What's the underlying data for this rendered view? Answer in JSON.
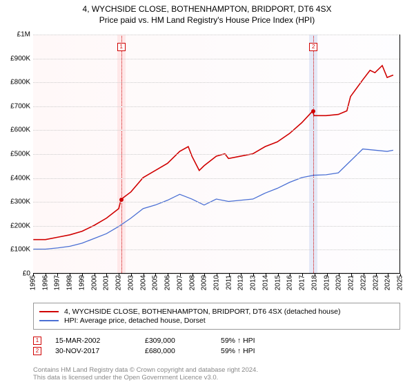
{
  "title": "4, WYCHSIDE CLOSE, BOTHENHAMPTON, BRIDPORT, DT6 4SX",
  "subtitle": "Price paid vs. HM Land Registry's House Price Index (HPI)",
  "chart": {
    "type": "line",
    "background_color": "#ffffff",
    "grid_color": "#cccccc",
    "axis_color": "#000000",
    "x": {
      "min": 1995,
      "max": 2025,
      "ticks": [
        1995,
        1996,
        1997,
        1998,
        1999,
        2000,
        2001,
        2002,
        2003,
        2004,
        2005,
        2006,
        2007,
        2008,
        2009,
        2010,
        2011,
        2012,
        2013,
        2014,
        2015,
        2016,
        2017,
        2018,
        2019,
        2020,
        2021,
        2022,
        2023,
        2024,
        2025
      ]
    },
    "y": {
      "min": 0,
      "max": 1000000,
      "ticks": [
        0,
        100000,
        200000,
        300000,
        400000,
        500000,
        600000,
        700000,
        800000,
        900000,
        1000000
      ],
      "tick_labels": [
        "£0",
        "£100K",
        "£200K",
        "£300K",
        "£400K",
        "£500K",
        "£600K",
        "£700K",
        "£800K",
        "£900K",
        "£1M"
      ]
    },
    "bands": [
      {
        "x": 2002.2,
        "color": "rgba(255,200,200,0.35)"
      },
      {
        "x": 2017.91,
        "color": "rgba(200,210,240,0.45)"
      }
    ],
    "series": [
      {
        "name": "4, WYCHSIDE CLOSE, BOTHENHAMPTON, BRIDPORT, DT6 4SX (detached house)",
        "color": "#d00000",
        "width": 1.6,
        "points": [
          [
            1995,
            140000
          ],
          [
            1996,
            140000
          ],
          [
            1997,
            150000
          ],
          [
            1998,
            160000
          ],
          [
            1999,
            175000
          ],
          [
            2000,
            200000
          ],
          [
            2001,
            230000
          ],
          [
            2002,
            270000
          ],
          [
            2002.2,
            309000
          ],
          [
            2003,
            340000
          ],
          [
            2004,
            400000
          ],
          [
            2005,
            430000
          ],
          [
            2006,
            460000
          ],
          [
            2007,
            510000
          ],
          [
            2007.7,
            530000
          ],
          [
            2008,
            490000
          ],
          [
            2008.6,
            430000
          ],
          [
            2009,
            450000
          ],
          [
            2010,
            490000
          ],
          [
            2010.7,
            500000
          ],
          [
            2011,
            480000
          ],
          [
            2012,
            490000
          ],
          [
            2013,
            500000
          ],
          [
            2014,
            530000
          ],
          [
            2015,
            550000
          ],
          [
            2016,
            585000
          ],
          [
            2017,
            630000
          ],
          [
            2017.91,
            680000
          ],
          [
            2018,
            660000
          ],
          [
            2019,
            660000
          ],
          [
            2020,
            665000
          ],
          [
            2020.7,
            680000
          ],
          [
            2021,
            740000
          ],
          [
            2022,
            810000
          ],
          [
            2022.6,
            850000
          ],
          [
            2023,
            840000
          ],
          [
            2023.6,
            870000
          ],
          [
            2024,
            820000
          ],
          [
            2024.5,
            830000
          ]
        ]
      },
      {
        "name": "HPI: Average price, detached house, Dorset",
        "color": "#4a6fd4",
        "width": 1.3,
        "points": [
          [
            1995,
            100000
          ],
          [
            1996,
            100000
          ],
          [
            1997,
            105000
          ],
          [
            1998,
            112000
          ],
          [
            1999,
            125000
          ],
          [
            2000,
            145000
          ],
          [
            2001,
            165000
          ],
          [
            2002,
            195000
          ],
          [
            2003,
            230000
          ],
          [
            2004,
            270000
          ],
          [
            2005,
            285000
          ],
          [
            2006,
            305000
          ],
          [
            2007,
            330000
          ],
          [
            2008,
            310000
          ],
          [
            2009,
            285000
          ],
          [
            2010,
            310000
          ],
          [
            2011,
            300000
          ],
          [
            2012,
            305000
          ],
          [
            2013,
            310000
          ],
          [
            2014,
            335000
          ],
          [
            2015,
            355000
          ],
          [
            2016,
            380000
          ],
          [
            2017,
            400000
          ],
          [
            2018,
            410000
          ],
          [
            2019,
            412000
          ],
          [
            2020,
            420000
          ],
          [
            2021,
            470000
          ],
          [
            2022,
            520000
          ],
          [
            2023,
            515000
          ],
          [
            2024,
            510000
          ],
          [
            2024.5,
            515000
          ]
        ]
      }
    ],
    "sale_markers": [
      {
        "n": "1",
        "x": 2002.2,
        "y": 309000,
        "band_top_y": 68
      },
      {
        "n": "2",
        "x": 2017.91,
        "y": 680000,
        "band_top_y": 68
      }
    ]
  },
  "legend": {
    "items": [
      {
        "color": "#d00000",
        "label": "4, WYCHSIDE CLOSE, BOTHENHAMPTON, BRIDPORT, DT6 4SX (detached house)"
      },
      {
        "color": "#4a6fd4",
        "label": "HPI: Average price, detached house, Dorset"
      }
    ]
  },
  "sales": [
    {
      "n": "1",
      "date": "15-MAR-2002",
      "price": "£309,000",
      "rel": "59% ↑ HPI"
    },
    {
      "n": "2",
      "date": "30-NOV-2017",
      "price": "£680,000",
      "rel": "59% ↑ HPI"
    }
  ],
  "attribution": {
    "line1": "Contains HM Land Registry data © Crown copyright and database right 2024.",
    "line2": "This data is licensed under the Open Government Licence v3.0."
  }
}
